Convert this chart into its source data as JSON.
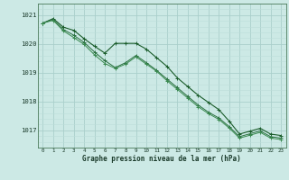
{
  "xlabel": "Graphe pression niveau de la mer (hPa)",
  "background_color": "#cce9e5",
  "grid_major_color": "#aacfcb",
  "grid_minor_color": "#bdddd9",
  "line_colors": [
    "#1a5c2a",
    "#2a7040",
    "#3a8a50"
  ],
  "xlim": [
    -0.5,
    23.5
  ],
  "ylim": [
    1016.4,
    1021.4
  ],
  "yticks": [
    1017,
    1018,
    1019,
    1020,
    1021
  ],
  "xticks": [
    0,
    1,
    2,
    3,
    4,
    5,
    6,
    7,
    8,
    9,
    10,
    11,
    12,
    13,
    14,
    15,
    16,
    17,
    18,
    19,
    20,
    21,
    22,
    23
  ],
  "series1": [
    1020.72,
    1020.88,
    1020.58,
    1020.47,
    1020.18,
    1019.92,
    1019.68,
    1020.02,
    1020.02,
    1020.02,
    1019.82,
    1019.52,
    1019.22,
    1018.82,
    1018.52,
    1018.22,
    1017.97,
    1017.72,
    1017.32,
    1016.87,
    1016.97,
    1017.07,
    1016.87,
    1016.82
  ],
  "series2": [
    1020.72,
    1020.85,
    1020.5,
    1020.3,
    1020.05,
    1019.72,
    1019.42,
    1019.18,
    1019.35,
    1019.6,
    1019.35,
    1019.08,
    1018.78,
    1018.48,
    1018.18,
    1017.88,
    1017.63,
    1017.43,
    1017.13,
    1016.78,
    1016.88,
    1016.98,
    1016.78,
    1016.73
  ],
  "series3": [
    1020.72,
    1020.82,
    1020.45,
    1020.22,
    1019.98,
    1019.62,
    1019.32,
    1019.15,
    1019.3,
    1019.55,
    1019.3,
    1019.05,
    1018.72,
    1018.42,
    1018.12,
    1017.82,
    1017.58,
    1017.38,
    1017.08,
    1016.73,
    1016.83,
    1016.93,
    1016.73,
    1016.68
  ]
}
